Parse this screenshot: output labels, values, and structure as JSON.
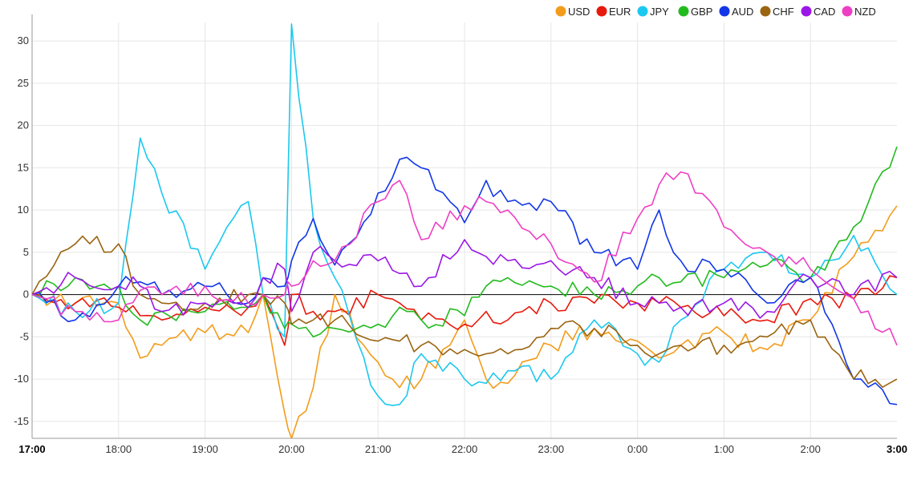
{
  "chart_data": {
    "type": "line",
    "title": "",
    "xlabel": "",
    "ylabel": "",
    "ylim": [
      -17,
      32
    ],
    "zero_line": true,
    "grid": true,
    "legend_position": "top-right",
    "x_start_hours": 17,
    "x_end_hours": 27,
    "x_ticks": [
      {
        "hours": 17,
        "label": "17:00",
        "bold": true
      },
      {
        "hours": 18,
        "label": "18:00",
        "bold": false
      },
      {
        "hours": 19,
        "label": "19:00",
        "bold": false
      },
      {
        "hours": 20,
        "label": "20:00",
        "bold": false
      },
      {
        "hours": 21,
        "label": "21:00",
        "bold": false
      },
      {
        "hours": 22,
        "label": "22:00",
        "bold": false
      },
      {
        "hours": 23,
        "label": "23:00",
        "bold": false
      },
      {
        "hours": 24,
        "label": "0:00",
        "bold": false
      },
      {
        "hours": 25,
        "label": "1:00",
        "bold": false
      },
      {
        "hours": 26,
        "label": "2:00",
        "bold": false
      },
      {
        "hours": 27,
        "label": "3:00",
        "bold": true
      }
    ],
    "y_ticks": [
      30,
      25,
      20,
      15,
      10,
      5,
      0,
      -5,
      -10,
      -15
    ],
    "x": [
      17,
      17.5,
      18,
      18.25,
      18.5,
      19,
      19.5,
      19.67,
      19.92,
      20,
      20.25,
      20.5,
      21,
      21.25,
      21.5,
      22,
      22.25,
      22.5,
      23,
      23.5,
      24,
      24.25,
      24.5,
      25,
      25.5,
      26,
      26.5,
      27
    ],
    "series": [
      {
        "name": "USD",
        "color": "#f39c1b",
        "values": [
          0,
          -1,
          -1,
          -7.5,
          -6,
          -4.5,
          -4.5,
          0,
          -14,
          -17,
          -11,
          0,
          -8,
          -11,
          -10,
          -3,
          -10,
          -10.5,
          -6,
          -4,
          -5.5,
          -7.5,
          -6,
          -4.5,
          -6.5,
          -3,
          4.5,
          10.5
        ]
      },
      {
        "name": "EUR",
        "color": "#e8190c",
        "values": [
          0,
          -1,
          -1.5,
          -2.5,
          -3,
          -1.5,
          -1.5,
          0,
          -6,
          0,
          -2,
          -2,
          0,
          -1,
          -3,
          -3.5,
          -2,
          -3,
          -1,
          -1,
          -1,
          -1,
          -1.5,
          -2.5,
          -3,
          -0.5,
          -0.5,
          2
        ]
      },
      {
        "name": "JPY",
        "color": "#1cc8ef",
        "values": [
          0,
          -2,
          -1,
          18.5,
          12,
          3,
          11,
          0,
          -5,
          32,
          9,
          2,
          -12,
          -13,
          -7,
          -10,
          -10.5,
          -9,
          -10,
          -3,
          -7,
          -8,
          -3,
          3,
          5,
          2,
          7,
          0
        ]
      },
      {
        "name": "GBP",
        "color": "#22bb1e",
        "values": [
          0,
          2,
          1,
          -3,
          -2,
          -2,
          -1.5,
          0,
          -4,
          -3.5,
          -5,
          -4,
          -3.5,
          -1.5,
          -3,
          -2.5,
          1,
          2,
          1,
          0,
          1,
          2,
          1.5,
          2,
          3.5,
          2,
          8,
          17.5
        ]
      },
      {
        "name": "AUD",
        "color": "#1237e8",
        "values": [
          0,
          -3,
          1,
          1.5,
          0,
          1,
          -1,
          2,
          1,
          4,
          9,
          3.5,
          12,
          16,
          15,
          8.5,
          13.5,
          11,
          11,
          5,
          3,
          10,
          4,
          3,
          -1,
          2,
          -10,
          -13
        ]
      },
      {
        "name": "CHF",
        "color": "#9a6410",
        "values": [
          0,
          6,
          6,
          0,
          -1,
          -1,
          0,
          0,
          -1,
          -3.5,
          -3,
          -3,
          -5.5,
          -5.5,
          -6,
          -6.5,
          -7,
          -7,
          -4,
          -4,
          -6,
          -7,
          -6,
          -6,
          -5,
          -3,
          -10,
          -10
        ]
      },
      {
        "name": "CAD",
        "color": "#9b17e6",
        "values": [
          0,
          2,
          1,
          1,
          -2,
          -1,
          -1.5,
          2,
          3,
          -2,
          5,
          4,
          4,
          2.5,
          1,
          6.5,
          4.5,
          4,
          4,
          2,
          -1,
          -1,
          -1.5,
          -1,
          -2,
          2,
          0,
          2
        ]
      },
      {
        "name": "NZD",
        "color": "#ee3fc4",
        "values": [
          0,
          -2,
          -3,
          0.5,
          0,
          1,
          -1,
          0,
          0,
          1,
          4,
          4,
          11,
          13.5,
          6.5,
          10.5,
          11,
          10,
          6,
          1.5,
          9,
          13,
          14.5,
          8,
          5,
          3,
          -0.5,
          -6
        ]
      }
    ]
  }
}
